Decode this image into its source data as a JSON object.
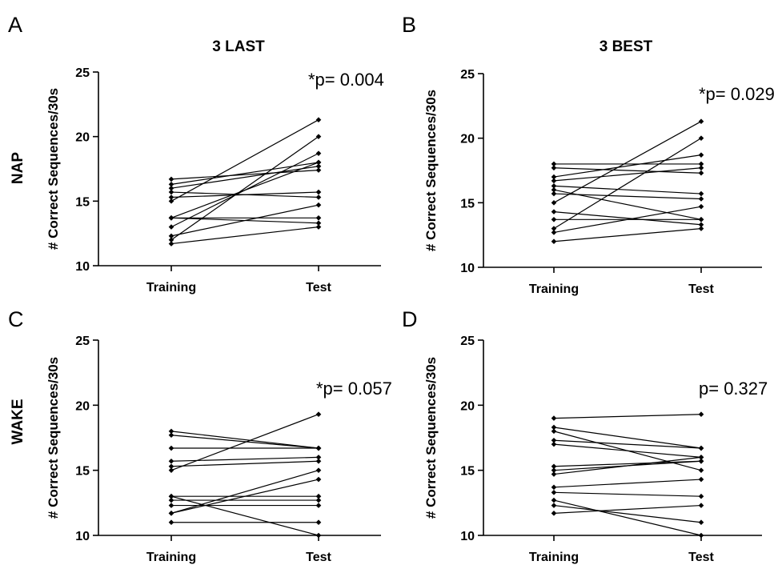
{
  "columns": [
    "3 LAST",
    "3 BEST"
  ],
  "rows": [
    "NAP",
    "WAKE"
  ],
  "chart_data": [
    {
      "panel": "A",
      "type": "line",
      "title": "3 LAST",
      "ylabel": "# Correct Sequences/30s",
      "categories": [
        "Training",
        "Test"
      ],
      "ylim": [
        10,
        25
      ],
      "yticks": [
        10,
        15,
        20,
        25
      ],
      "annotation": "*p= 0.004",
      "grid": false,
      "pairs": [
        [
          16.7,
          17.4
        ],
        [
          16.3,
          18.0
        ],
        [
          16.0,
          17.7
        ],
        [
          15.7,
          15.3
        ],
        [
          15.3,
          15.7
        ],
        [
          15.0,
          21.3
        ],
        [
          13.7,
          18.0
        ],
        [
          13.7,
          13.7
        ],
        [
          13.7,
          13.3
        ],
        [
          13.0,
          18.7
        ],
        [
          12.3,
          14.7
        ],
        [
          12.0,
          20.0
        ],
        [
          11.7,
          13.0
        ]
      ]
    },
    {
      "panel": "B",
      "type": "line",
      "title": "3 BEST",
      "ylabel": "# Correct Sequences/30s",
      "categories": [
        "Training",
        "Test"
      ],
      "ylim": [
        10,
        25
      ],
      "yticks": [
        10,
        15,
        20,
        25
      ],
      "annotation": "*p= 0.029",
      "grid": false,
      "pairs": [
        [
          18.0,
          18.0
        ],
        [
          17.7,
          17.3
        ],
        [
          17.0,
          18.7
        ],
        [
          16.7,
          17.7
        ],
        [
          16.3,
          15.7
        ],
        [
          16.0,
          13.7
        ],
        [
          15.7,
          15.3
        ],
        [
          15.0,
          21.3
        ],
        [
          14.3,
          13.3
        ],
        [
          13.7,
          13.7
        ],
        [
          13.0,
          20.0
        ],
        [
          12.7,
          14.7
        ],
        [
          12.0,
          13.0
        ]
      ]
    },
    {
      "panel": "C",
      "type": "line",
      "title": "",
      "ylabel": "# Correct Sequences/30s",
      "categories": [
        "Training",
        "Test"
      ],
      "ylim": [
        10,
        25
      ],
      "yticks": [
        10,
        15,
        20,
        25
      ],
      "annotation": "*p= 0.057",
      "grid": false,
      "pairs": [
        [
          18.0,
          16.7
        ],
        [
          17.7,
          16.7
        ],
        [
          16.7,
          16.7
        ],
        [
          15.7,
          16.0
        ],
        [
          15.3,
          15.7
        ],
        [
          15.0,
          19.3
        ],
        [
          13.0,
          13.0
        ],
        [
          13.0,
          10.0
        ],
        [
          12.7,
          12.7
        ],
        [
          12.3,
          12.3
        ],
        [
          11.7,
          15.0
        ],
        [
          11.7,
          14.3
        ],
        [
          11.0,
          11.0
        ]
      ]
    },
    {
      "panel": "D",
      "type": "line",
      "title": "",
      "ylabel": "# Correct Sequences/30s",
      "categories": [
        "Training",
        "Test"
      ],
      "ylim": [
        10,
        25
      ],
      "yticks": [
        10,
        15,
        20,
        25
      ],
      "annotation": "p= 0.327",
      "grid": false,
      "pairs": [
        [
          19.0,
          19.3
        ],
        [
          18.3,
          16.7
        ],
        [
          18.0,
          15.0
        ],
        [
          17.3,
          16.7
        ],
        [
          17.0,
          16.0
        ],
        [
          15.3,
          15.7
        ],
        [
          15.0,
          15.7
        ],
        [
          14.7,
          16.0
        ],
        [
          13.7,
          14.3
        ],
        [
          13.3,
          13.0
        ],
        [
          12.7,
          10.0
        ],
        [
          12.3,
          11.0
        ],
        [
          11.7,
          12.3
        ]
      ]
    }
  ]
}
